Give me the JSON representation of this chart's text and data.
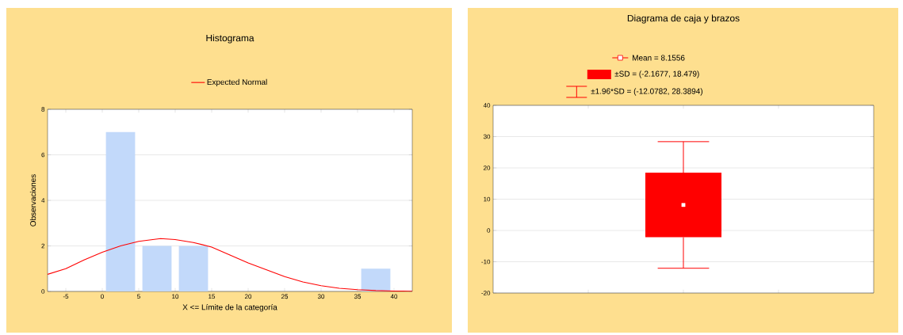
{
  "chart_data": [
    {
      "type": "histogram",
      "title": "Histograma",
      "xlabel": "X <= Límite de la categoría",
      "ylabel": "Observaciones",
      "bins": [
        0,
        5,
        10,
        15,
        20,
        25,
        30,
        35,
        40
      ],
      "values": [
        7,
        2,
        2,
        0,
        0,
        0,
        0,
        1
      ],
      "color": "#c2d9fa",
      "xlim": [
        -7.5,
        42.5
      ],
      "xticks": [
        -5,
        0,
        5,
        10,
        15,
        20,
        25,
        30,
        35,
        40
      ],
      "ylim": [
        0,
        8
      ],
      "yticks": [
        0,
        2,
        4,
        6,
        8
      ],
      "grid": "y",
      "legend": "top",
      "series": [
        {
          "name": "Expected Normal",
          "type": "line",
          "color": "#ff0000",
          "x": [
            -7.5,
            -5,
            -2.5,
            0,
            2.5,
            5,
            8,
            10,
            12.5,
            15,
            17.5,
            20,
            22.5,
            25,
            27.5,
            30,
            32.5,
            35,
            37.5,
            40,
            42.5
          ],
          "values": [
            0.75,
            1.0,
            1.38,
            1.72,
            2.0,
            2.2,
            2.32,
            2.28,
            2.15,
            1.95,
            1.6,
            1.25,
            0.95,
            0.65,
            0.42,
            0.25,
            0.14,
            0.08,
            0.04,
            0.02,
            0.01
          ]
        }
      ]
    },
    {
      "type": "box",
      "title": "Diagrama de caja y brazos",
      "categories": [
        null
      ],
      "color": "#ff0000",
      "boxes": [
        {
          "low": -12.0782,
          "q1": -2.1677,
          "median": null,
          "q3": 18.479,
          "high": 28.3894,
          "mean": 8.1556
        }
      ],
      "ylim": [
        -20,
        40
      ],
      "yticks": [
        -20,
        -10,
        0,
        10,
        20,
        30,
        40
      ],
      "grid": "y",
      "tick_labels": "y",
      "annotations": [
        "Mean = 8.1556",
        "±SD = (-2.1677, 18.479)",
        "±1.96*SD = (-12.0782, 28.3894)"
      ]
    }
  ]
}
